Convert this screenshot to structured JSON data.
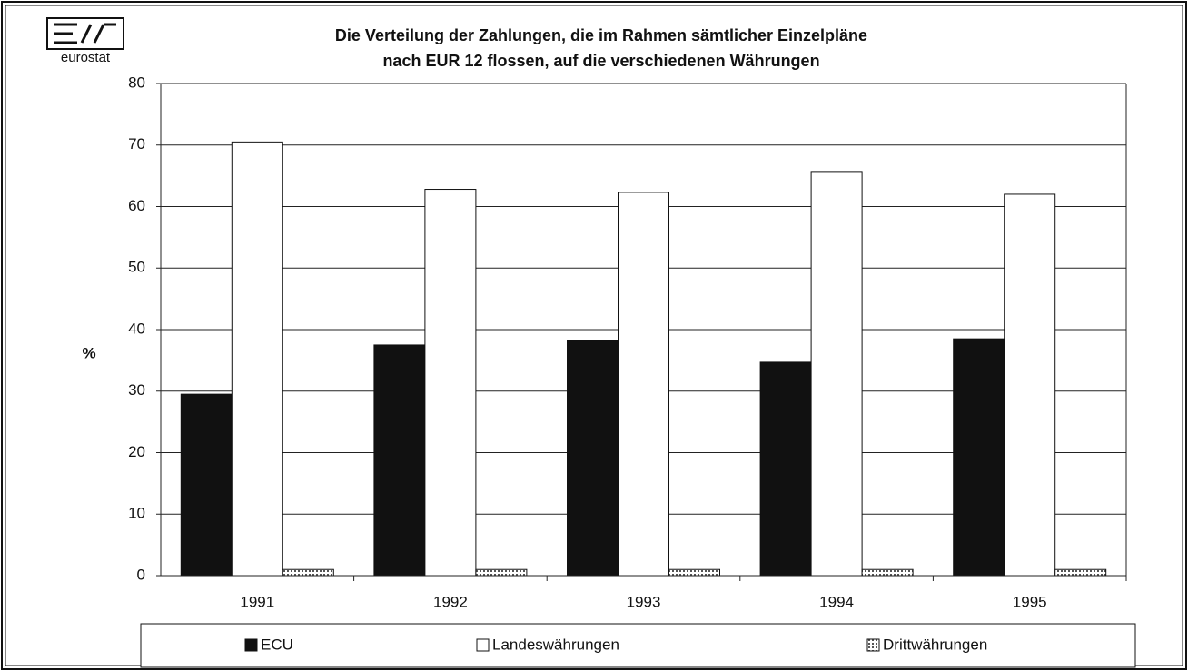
{
  "chart_data": {
    "type": "bar",
    "logo": "eurostat",
    "title": [
      "Die Verteilung der Zahlungen, die im Rahmen sämtlicher Einzelpläne",
      "nach EUR 12 flossen, auf die verschiedenen Währungen"
    ],
    "y_label": "%",
    "categories": [
      "1991",
      "1992",
      "1993",
      "1994",
      "1995"
    ],
    "series": [
      {
        "name": "ECU",
        "color": "#111111",
        "values": [
          29.5,
          37.5,
          38.2,
          34.7,
          38.5
        ]
      },
      {
        "name": "Landeswährungen",
        "color": "#ffffff",
        "values": [
          70.5,
          62.8,
          62.3,
          65.7,
          62.0
        ]
      },
      {
        "name": "Drittwährungen",
        "color": "#b0b0b0",
        "values": [
          1.0,
          1.0,
          1.0,
          1.0,
          1.0
        ]
      }
    ],
    "ylim": [
      0,
      80
    ],
    "yticks": [
      0,
      10,
      20,
      30,
      40,
      50,
      60,
      70,
      80
    ],
    "grid": true,
    "legend": "bottom"
  }
}
